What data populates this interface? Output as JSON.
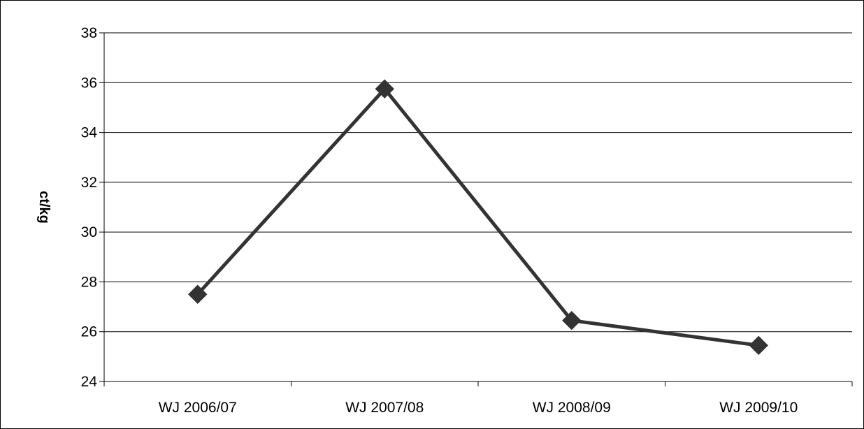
{
  "chart_data": {
    "type": "line",
    "title": "",
    "xlabel": "",
    "ylabel": "ct/kg",
    "categories": [
      "WJ 2006/07",
      "WJ 2007/08",
      "WJ 2008/09",
      "WJ 2009/10"
    ],
    "series": [
      {
        "values": [
          27.5,
          35.75,
          26.45,
          25.45
        ],
        "color": "#333333",
        "marker": "diamond"
      }
    ],
    "ylim": [
      24,
      38
    ],
    "yticks": [
      "24",
      "26",
      "28",
      "30",
      "32",
      "34",
      "36",
      "38"
    ],
    "grid": true,
    "legend": "none"
  }
}
